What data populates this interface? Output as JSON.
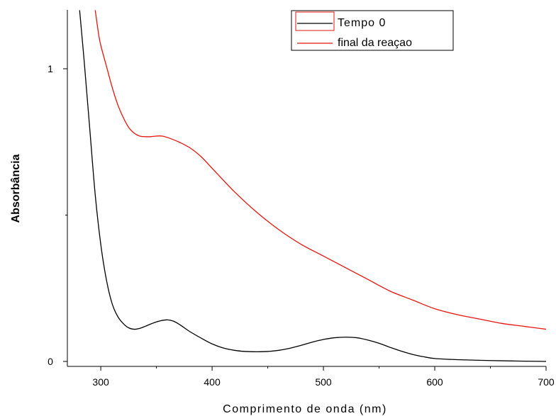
{
  "chart_data": {
    "type": "line",
    "xlabel": "Comprimento de onda (nm)",
    "ylabel": "Absorbância",
    "xlim": [
      270,
      700
    ],
    "ylim": [
      -0.02,
      1.2
    ],
    "x_ticks": [
      300,
      400,
      500,
      600,
      700
    ],
    "y_ticks": [
      0,
      1
    ],
    "x_minor_ticks": [
      350,
      450,
      550,
      650
    ],
    "y_minor_ticks": [
      0.5
    ],
    "grid": false,
    "legend": "top-right",
    "colors": {
      "tempo0": "#000000",
      "final": "#e8150d"
    },
    "series": [
      {
        "name": "Tempo 0",
        "color": "#000000",
        "x": [
          281,
          285,
          290,
          295,
          300,
          305,
          310,
          315,
          320,
          325,
          330,
          335,
          340,
          345,
          350,
          355,
          360,
          365,
          370,
          375,
          380,
          390,
          400,
          410,
          420,
          430,
          440,
          450,
          460,
          470,
          480,
          490,
          500,
          510,
          520,
          530,
          540,
          550,
          560,
          570,
          580,
          590,
          600,
          620,
          650,
          680,
          700
        ],
        "y": [
          1.2,
          1.03,
          0.8,
          0.57,
          0.4,
          0.28,
          0.2,
          0.155,
          0.13,
          0.115,
          0.11,
          0.113,
          0.12,
          0.128,
          0.135,
          0.14,
          0.142,
          0.138,
          0.128,
          0.115,
          0.102,
          0.08,
          0.06,
          0.046,
          0.038,
          0.034,
          0.033,
          0.034,
          0.038,
          0.045,
          0.055,
          0.066,
          0.075,
          0.081,
          0.083,
          0.081,
          0.073,
          0.062,
          0.048,
          0.035,
          0.024,
          0.016,
          0.01,
          0.006,
          0.003,
          0.001,
          0.0
        ]
      },
      {
        "name": "final da reaçao",
        "color": "#e8150d",
        "x": [
          295,
          298,
          300,
          305,
          310,
          315,
          320,
          325,
          330,
          335,
          340,
          345,
          350,
          355,
          360,
          370,
          380,
          390,
          400,
          420,
          440,
          460,
          480,
          500,
          520,
          540,
          560,
          580,
          600,
          620,
          640,
          660,
          680,
          700
        ],
        "y": [
          1.2,
          1.12,
          1.08,
          1.01,
          0.94,
          0.88,
          0.835,
          0.8,
          0.78,
          0.77,
          0.768,
          0.768,
          0.77,
          0.77,
          0.765,
          0.75,
          0.73,
          0.7,
          0.66,
          0.58,
          0.51,
          0.45,
          0.4,
          0.36,
          0.32,
          0.28,
          0.24,
          0.21,
          0.18,
          0.16,
          0.145,
          0.13,
          0.12,
          0.11
        ]
      }
    ]
  }
}
